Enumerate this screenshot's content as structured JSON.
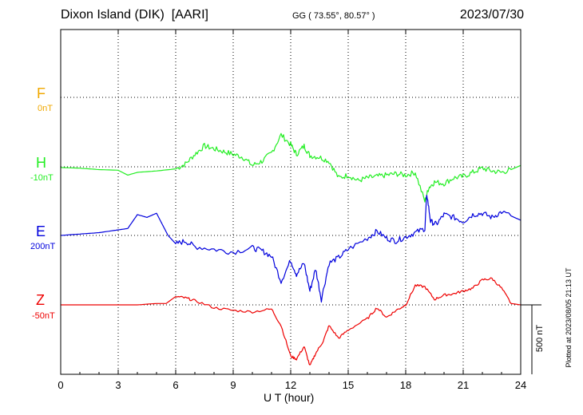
{
  "header": {
    "station": "Dixon Island (DIK)",
    "org": "[AARI]",
    "coords": "GG ( 73.55°,  80.57° )",
    "date": "2023/07/30"
  },
  "scale_label": "500 nT",
  "plotted_note": "Plotted at 2023/08/05 21:13 UT",
  "colors": {
    "F": "#f0a800",
    "H": "#22ee22",
    "E": "#0000dd",
    "Z": "#ee0000",
    "grid": "#000000"
  },
  "chart_data": {
    "type": "line",
    "title": "Dixon Island (DIK)  [AARI]",
    "xlabel": "U T (hour)",
    "ylabel": "",
    "xlim": [
      0,
      24
    ],
    "x_ticks": [
      "0",
      "3",
      "6",
      "9",
      "12",
      "15",
      "18",
      "21",
      "24"
    ],
    "grid": true,
    "scale_bar": "500 nT",
    "series": [
      {
        "name": "F",
        "baseline": "0nT",
        "color": "#f0a800",
        "x": [],
        "y": []
      },
      {
        "name": "H",
        "baseline": "-10nT",
        "color": "#22ee22",
        "x": [
          0,
          1,
          2,
          3,
          3.5,
          4,
          5,
          6,
          6.5,
          7,
          7.5,
          8,
          8.5,
          9,
          9.5,
          10,
          10.5,
          11,
          11.5,
          12,
          12.3,
          12.7,
          13,
          13.5,
          14,
          14.5,
          15,
          15.5,
          16,
          16.5,
          17,
          17.5,
          18,
          18.5,
          19,
          19.2,
          19.5,
          20,
          20.5,
          21,
          21.5,
          22,
          22.5,
          23,
          23.5,
          24
        ],
        "y": [
          -5,
          -10,
          -20,
          -25,
          -60,
          -40,
          -30,
          -15,
          20,
          90,
          150,
          130,
          110,
          90,
          70,
          10,
          40,
          100,
          230,
          160,
          90,
          150,
          80,
          70,
          40,
          -80,
          -60,
          -100,
          -80,
          -70,
          -60,
          -50,
          -60,
          -40,
          -250,
          -150,
          -110,
          -120,
          -80,
          -70,
          -40,
          -10,
          -30,
          -40,
          -20,
          10
        ]
      },
      {
        "name": "E",
        "baseline": "200nT",
        "color": "#0000dd",
        "x": [
          0,
          1,
          2,
          3,
          3.5,
          4,
          4.5,
          5,
          5.3,
          5.6,
          6,
          6.5,
          7,
          8,
          9,
          10,
          10.5,
          11,
          11.5,
          12,
          12.3,
          12.7,
          13,
          13.3,
          13.6,
          14,
          14.5,
          15,
          16,
          16.5,
          17,
          17.5,
          18,
          18.5,
          19,
          19.1,
          19.3,
          19.6,
          20,
          20.5,
          21,
          21.5,
          22,
          22.5,
          23,
          24
        ],
        "y": [
          0,
          10,
          20,
          40,
          50,
          150,
          130,
          160,
          80,
          0,
          -60,
          -40,
          -80,
          -100,
          -120,
          -90,
          -110,
          -150,
          -330,
          -180,
          -280,
          -200,
          -400,
          -240,
          -460,
          -200,
          -160,
          -100,
          -20,
          30,
          -20,
          -40,
          -10,
          20,
          50,
          300,
          100,
          80,
          150,
          130,
          100,
          150,
          160,
          130,
          170,
          110
        ]
      },
      {
        "name": "Z",
        "baseline": "-50nT",
        "color": "#ee0000",
        "x": [
          0,
          1,
          2,
          3,
          4,
          5,
          5.5,
          6,
          6.5,
          7,
          8,
          9,
          10,
          11,
          11.5,
          12,
          12.3,
          12.7,
          13,
          13.3,
          13.7,
          14,
          14.5,
          15,
          16,
          16.5,
          17,
          17.5,
          18,
          18.5,
          19,
          19.5,
          20,
          20.5,
          21,
          21.5,
          22,
          22.5,
          23,
          23.5,
          24
        ],
        "y": [
          0,
          0,
          0,
          0,
          0,
          10,
          10,
          60,
          50,
          30,
          -20,
          -40,
          -50,
          -30,
          -150,
          -370,
          -390,
          -300,
          -440,
          -350,
          -260,
          -150,
          -240,
          -180,
          -100,
          -20,
          -90,
          -40,
          0,
          140,
          130,
          40,
          70,
          80,
          100,
          120,
          180,
          190,
          120,
          10,
          0
        ]
      }
    ]
  }
}
